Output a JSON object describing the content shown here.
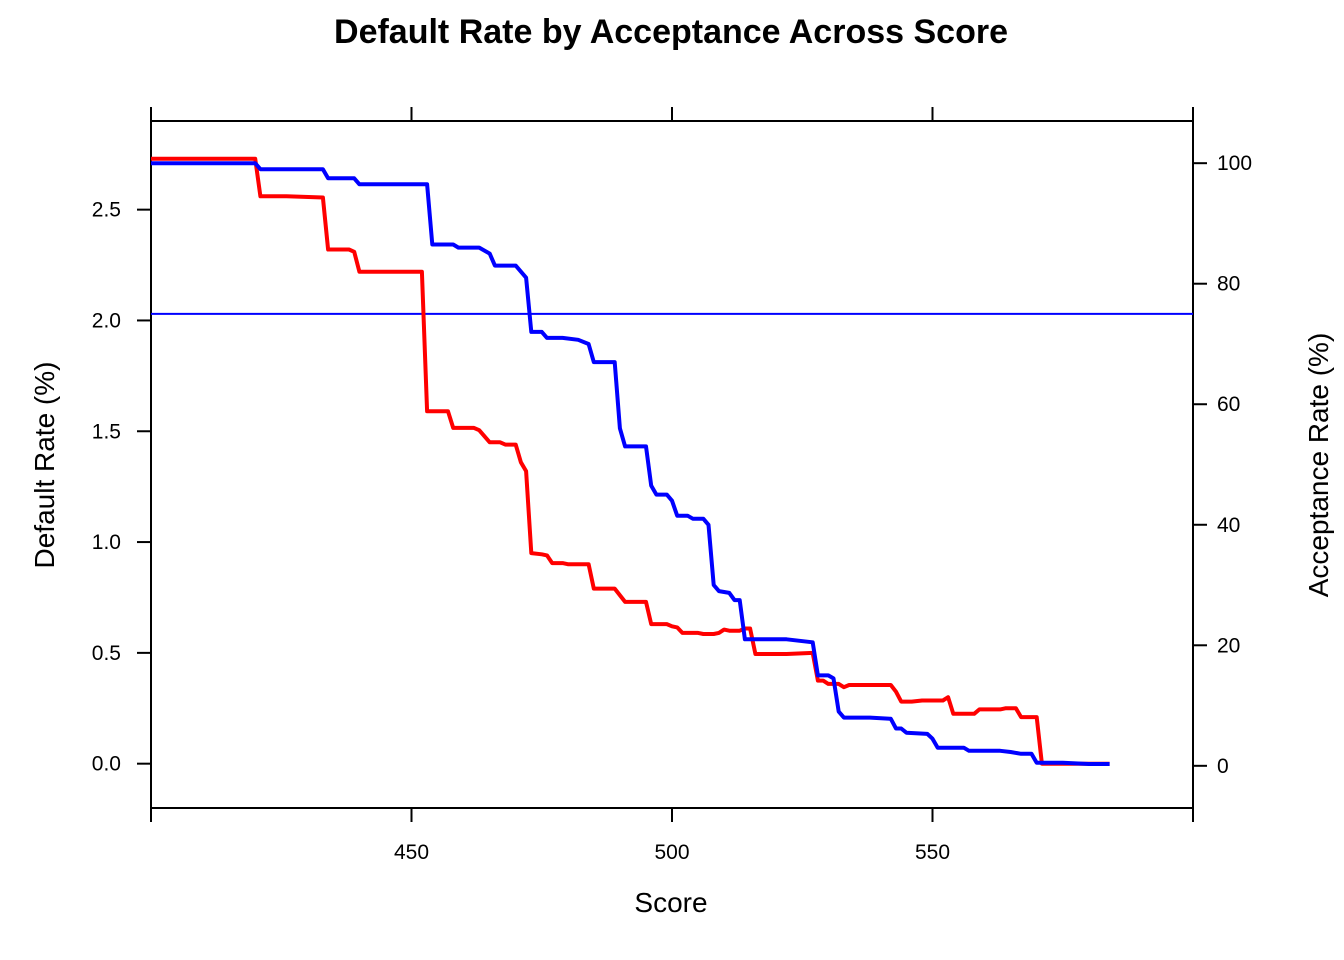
{
  "chart_data": {
    "type": "line",
    "title": "Default Rate by Acceptance Across Score",
    "xlabel": "Score",
    "ylabel": "Default Rate (%)",
    "y2label": "Acceptance Rate (%)",
    "xlim": [
      400,
      600
    ],
    "ylim": [
      -0.2,
      2.9
    ],
    "y2lim": [
      -7,
      107
    ],
    "x_ticks": [
      "450",
      "500",
      "550"
    ],
    "y_ticks": [
      "0.0",
      "0.5",
      "1.0",
      "1.5",
      "2.0",
      "2.5"
    ],
    "y2_ticks": [
      "0",
      "20",
      "40",
      "60",
      "80",
      "100"
    ],
    "grid": false,
    "legend": "none",
    "reference_line": {
      "axis": "right",
      "value": 75,
      "color": "#0000ff"
    },
    "series": [
      {
        "axis": "left",
        "color": "#ff0000",
        "points": [
          [
            400,
            2.73
          ],
          [
            420,
            2.73
          ],
          [
            421,
            2.56
          ],
          [
            426,
            2.56
          ],
          [
            433,
            2.555
          ],
          [
            434,
            2.32
          ],
          [
            438,
            2.32
          ],
          [
            439,
            2.31
          ],
          [
            440,
            2.22
          ],
          [
            452,
            2.22
          ],
          [
            453,
            1.59
          ],
          [
            457,
            1.59
          ],
          [
            458,
            1.515
          ],
          [
            462,
            1.515
          ],
          [
            463,
            1.505
          ],
          [
            465,
            1.45
          ],
          [
            467,
            1.45
          ],
          [
            468,
            1.44
          ],
          [
            470,
            1.44
          ],
          [
            471,
            1.36
          ],
          [
            472,
            1.32
          ],
          [
            473,
            0.95
          ],
          [
            475,
            0.945
          ],
          [
            476,
            0.94
          ],
          [
            477,
            0.905
          ],
          [
            479,
            0.905
          ],
          [
            480,
            0.9
          ],
          [
            484,
            0.9
          ],
          [
            485,
            0.79
          ],
          [
            489,
            0.79
          ],
          [
            491,
            0.73
          ],
          [
            495,
            0.73
          ],
          [
            496,
            0.63
          ],
          [
            499,
            0.63
          ],
          [
            500,
            0.62
          ],
          [
            501,
            0.615
          ],
          [
            502,
            0.59
          ],
          [
            505,
            0.59
          ],
          [
            506,
            0.585
          ],
          [
            508,
            0.585
          ],
          [
            509,
            0.59
          ],
          [
            510,
            0.605
          ],
          [
            511,
            0.6
          ],
          [
            513,
            0.6
          ],
          [
            514,
            0.61
          ],
          [
            515,
            0.61
          ],
          [
            516,
            0.495
          ],
          [
            522,
            0.495
          ],
          [
            527,
            0.5
          ],
          [
            528,
            0.375
          ],
          [
            529,
            0.375
          ],
          [
            530,
            0.36
          ],
          [
            532,
            0.36
          ],
          [
            533,
            0.345
          ],
          [
            534,
            0.355
          ],
          [
            542,
            0.355
          ],
          [
            543,
            0.325
          ],
          [
            544,
            0.28
          ],
          [
            546,
            0.28
          ],
          [
            548,
            0.285
          ],
          [
            552,
            0.285
          ],
          [
            553,
            0.3
          ],
          [
            554,
            0.225
          ],
          [
            558,
            0.225
          ],
          [
            559,
            0.245
          ],
          [
            563,
            0.245
          ],
          [
            564,
            0.25
          ],
          [
            566,
            0.25
          ],
          [
            567,
            0.21
          ],
          [
            569,
            0.21
          ],
          [
            570,
            0.21
          ],
          [
            571,
            0.0
          ],
          [
            575,
            0.0
          ],
          [
            580,
            0.0
          ],
          [
            584,
            0.0
          ]
        ]
      },
      {
        "axis": "right",
        "color": "#0000ff",
        "points": [
          [
            400,
            100
          ],
          [
            420,
            100
          ],
          [
            421,
            99
          ],
          [
            433,
            99
          ],
          [
            434,
            97.5
          ],
          [
            439,
            97.5
          ],
          [
            440,
            96.5
          ],
          [
            450,
            96.5
          ],
          [
            453,
            96.5
          ],
          [
            454,
            86.5
          ],
          [
            458,
            86.5
          ],
          [
            459,
            86
          ],
          [
            463,
            86
          ],
          [
            465,
            85
          ],
          [
            466,
            83
          ],
          [
            470,
            83
          ],
          [
            472,
            81
          ],
          [
            473,
            72
          ],
          [
            475,
            72
          ],
          [
            476,
            71
          ],
          [
            479,
            71
          ],
          [
            482,
            70.7
          ],
          [
            484,
            70
          ],
          [
            485,
            67
          ],
          [
            489,
            67
          ],
          [
            490,
            56
          ],
          [
            491,
            53
          ],
          [
            495,
            53
          ],
          [
            496,
            46.5
          ],
          [
            497,
            45
          ],
          [
            499,
            45
          ],
          [
            500,
            44
          ],
          [
            501,
            41.5
          ],
          [
            503,
            41.5
          ],
          [
            504,
            41
          ],
          [
            506,
            41
          ],
          [
            507,
            40
          ],
          [
            508,
            30
          ],
          [
            509,
            29
          ],
          [
            511,
            28.7
          ],
          [
            512,
            27.5
          ],
          [
            513,
            27.5
          ],
          [
            514,
            21
          ],
          [
            522,
            21
          ],
          [
            527,
            20.5
          ],
          [
            528,
            15
          ],
          [
            530,
            15
          ],
          [
            531,
            14.5
          ],
          [
            532,
            9
          ],
          [
            533,
            8
          ],
          [
            538,
            8
          ],
          [
            542,
            7.8
          ],
          [
            543,
            6.2
          ],
          [
            544,
            6.2
          ],
          [
            545,
            5.5
          ],
          [
            549,
            5.3
          ],
          [
            550,
            4.5
          ],
          [
            551,
            3
          ],
          [
            556,
            3
          ],
          [
            557,
            2.5
          ],
          [
            563,
            2.5
          ],
          [
            565,
            2.3
          ],
          [
            567,
            2
          ],
          [
            569,
            2
          ],
          [
            570,
            0.5
          ],
          [
            575,
            0.5
          ],
          [
            580,
            0.3
          ],
          [
            584,
            0.3
          ]
        ]
      }
    ]
  }
}
